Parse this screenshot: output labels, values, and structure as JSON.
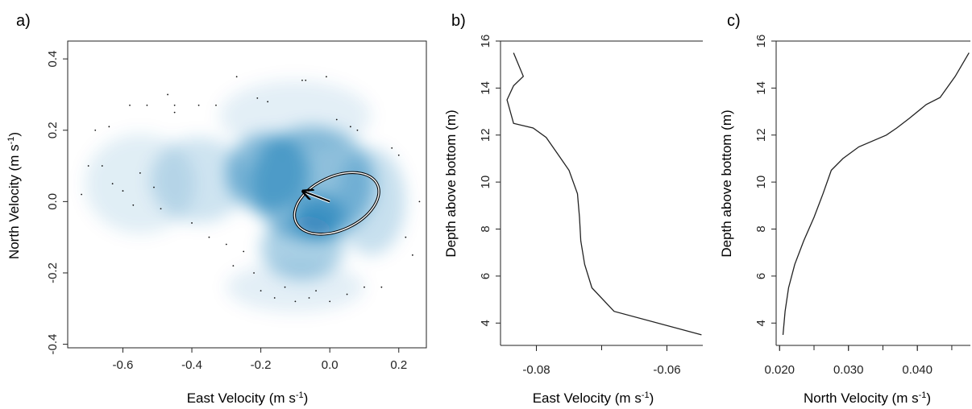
{
  "figure": {
    "panel_labels": [
      "a)",
      "b)",
      "c)"
    ]
  },
  "chart_data": [
    {
      "panel": "a)",
      "type": "scatter",
      "xlabel": "East Velocity (m s-1)",
      "xlabel_main": "East Velocity (m s",
      "xlabel_sup": "-1",
      "xlabel_end": ")",
      "ylabel": "North Velocity (m s-1)",
      "ylabel_main": "North Velocity (m s",
      "ylabel_sup": "-1",
      "ylabel_end": ")",
      "xlim": [
        -0.76,
        0.28
      ],
      "ylim": [
        -0.41,
        0.45
      ],
      "xticks": [
        "-0.6",
        "-0.4",
        "-0.2",
        "0.0",
        "0.2"
      ],
      "xtick_values": [
        -0.6,
        -0.4,
        -0.2,
        0.0,
        0.2
      ],
      "yticks": [
        "-0.4",
        "-0.2",
        "0.0",
        "0.2",
        "0.4"
      ],
      "ytick_values": [
        -0.4,
        -0.2,
        0.0,
        0.2,
        0.4
      ],
      "grid": false,
      "density_color": "#0a6fb0",
      "density_blobs": [
        {
          "x": -0.03,
          "y": -0.04,
          "rx": 0.07,
          "ry": 0.06,
          "weight": 1.0
        },
        {
          "x": -0.18,
          "y": 0.08,
          "rx": 0.12,
          "ry": 0.11,
          "weight": 0.85
        },
        {
          "x": -0.05,
          "y": 0.05,
          "rx": 0.18,
          "ry": 0.16,
          "weight": 0.8
        },
        {
          "x": -0.08,
          "y": -0.13,
          "rx": 0.12,
          "ry": 0.09,
          "weight": 0.6
        },
        {
          "x": -0.38,
          "y": 0.06,
          "rx": 0.14,
          "ry": 0.12,
          "weight": 0.35
        },
        {
          "x": -0.55,
          "y": 0.05,
          "rx": 0.16,
          "ry": 0.14,
          "weight": 0.22
        },
        {
          "x": -0.1,
          "y": 0.24,
          "rx": 0.22,
          "ry": 0.1,
          "weight": 0.2
        },
        {
          "x": -0.1,
          "y": -0.24,
          "rx": 0.2,
          "ry": 0.07,
          "weight": 0.2
        },
        {
          "x": 0.12,
          "y": 0.0,
          "rx": 0.1,
          "ry": 0.15,
          "weight": 0.4
        }
      ],
      "points": [
        [
          -0.7,
          0.1
        ],
        [
          -0.68,
          0.2
        ],
        [
          -0.66,
          0.1
        ],
        [
          -0.63,
          0.05
        ],
        [
          -0.64,
          0.21
        ],
        [
          -0.6,
          0.03
        ],
        [
          -0.58,
          0.27
        ],
        [
          -0.55,
          0.08
        ],
        [
          -0.53,
          0.27
        ],
        [
          -0.51,
          0.04
        ],
        [
          -0.47,
          0.3
        ],
        [
          -0.45,
          0.25
        ],
        [
          -0.4,
          -0.06
        ],
        [
          -0.38,
          0.27
        ],
        [
          -0.35,
          -0.1
        ],
        [
          -0.33,
          0.27
        ],
        [
          -0.3,
          -0.12
        ],
        [
          -0.27,
          0.35
        ],
        [
          -0.22,
          -0.2
        ],
        [
          -0.2,
          -0.25
        ],
        [
          -0.18,
          0.28
        ],
        [
          -0.16,
          -0.27
        ],
        [
          -0.13,
          -0.24
        ],
        [
          -0.1,
          -0.28
        ],
        [
          -0.08,
          0.34
        ],
        [
          -0.06,
          -0.27
        ],
        [
          -0.04,
          -0.25
        ],
        [
          -0.01,
          0.35
        ],
        [
          0.02,
          0.23
        ],
        [
          0.05,
          -0.26
        ],
        [
          0.06,
          0.21
        ],
        [
          0.1,
          -0.24
        ],
        [
          0.15,
          -0.24
        ],
        [
          0.18,
          0.15
        ],
        [
          0.2,
          0.13
        ],
        [
          0.22,
          -0.1
        ],
        [
          0.24,
          -0.15
        ],
        [
          0.26,
          0.0
        ],
        [
          -0.72,
          0.02
        ],
        [
          -0.57,
          -0.01
        ],
        [
          -0.49,
          -0.02
        ],
        [
          -0.28,
          -0.18
        ],
        [
          -0.25,
          -0.14
        ],
        [
          -0.21,
          0.29
        ],
        [
          -0.07,
          0.34
        ],
        [
          0.0,
          -0.28
        ],
        [
          -0.45,
          0.27
        ],
        [
          0.08,
          0.2
        ]
      ],
      "ellipse": {
        "cx": 0.02,
        "cy": -0.005,
        "rx": 0.13,
        "ry": 0.075,
        "angle_deg": -25
      },
      "mean_vector": {
        "x": -0.075,
        "y": 0.028
      }
    },
    {
      "panel": "b)",
      "type": "line",
      "xlabel": "East Velocity (m s-1)",
      "xlabel_main": "East Velocity (m s",
      "xlabel_sup": "-1",
      "xlabel_end": ")",
      "ylabel": "Depth above bottom (m)",
      "xlim": [
        -0.0855,
        -0.0545
      ],
      "ylim": [
        3.05,
        16.0
      ],
      "xticks": [
        "-0.08",
        "-0.06"
      ],
      "xtick_values": [
        -0.08,
        -0.06
      ],
      "yticks": [
        "4",
        "6",
        "8",
        "10",
        "12",
        "14",
        "16"
      ],
      "ytick_values": [
        4,
        6,
        8,
        10,
        12,
        14,
        16
      ],
      "grid": false,
      "x": [
        -0.0547,
        -0.0681,
        -0.0715,
        -0.0726,
        -0.0732,
        -0.0734,
        -0.0737,
        -0.075,
        -0.0765,
        -0.0775,
        -0.0785,
        -0.0805,
        -0.0835,
        -0.0845,
        -0.0835,
        -0.082,
        -0.0835
      ],
      "y": [
        3.5,
        4.5,
        5.5,
        6.5,
        7.5,
        8.5,
        9.5,
        10.5,
        11.1,
        11.5,
        11.9,
        12.3,
        12.5,
        13.5,
        14.1,
        14.5,
        15.5
      ]
    },
    {
      "panel": "c)",
      "type": "line",
      "xlabel": "North Velocity (m s-1)",
      "xlabel_main": "North Velocity (m s",
      "xlabel_sup": "-1",
      "xlabel_end": ")",
      "ylabel": "Depth above bottom (m)",
      "xlim": [
        0.0195,
        0.0477
      ],
      "ylim": [
        3.05,
        16.0
      ],
      "xticks": [
        "0.020",
        "0.030",
        "0.040"
      ],
      "xtick_values": [
        0.02,
        0.03,
        0.04
      ],
      "yticks": [
        "4",
        "6",
        "8",
        "10",
        "12",
        "14",
        "16"
      ],
      "ytick_values": [
        4,
        6,
        8,
        10,
        12,
        14,
        16
      ],
      "grid": false,
      "x": [
        0.0205,
        0.0208,
        0.0213,
        0.0222,
        0.0235,
        0.025,
        0.0263,
        0.0275,
        0.0292,
        0.0315,
        0.0355,
        0.037,
        0.0388,
        0.0413,
        0.0433,
        0.0455,
        0.0475
      ],
      "y": [
        3.5,
        4.5,
        5.5,
        6.5,
        7.5,
        8.5,
        9.5,
        10.5,
        11.0,
        11.5,
        12.0,
        12.3,
        12.7,
        13.3,
        13.6,
        14.5,
        15.5
      ]
    }
  ]
}
